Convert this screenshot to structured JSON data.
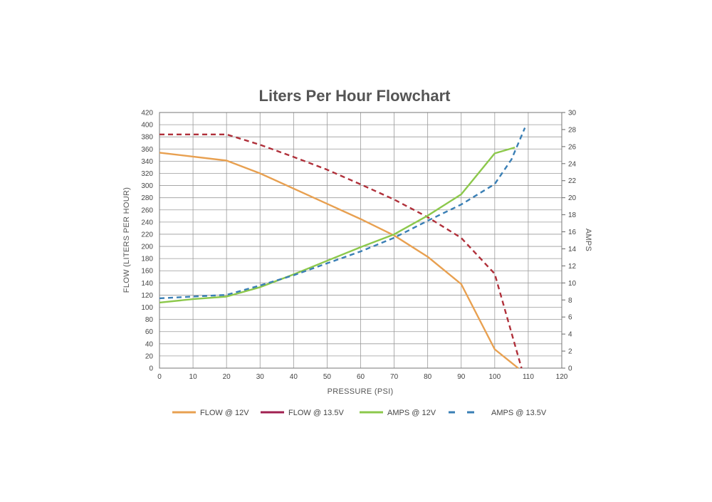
{
  "chart_data": {
    "type": "line",
    "title": "Liters Per Hour Flowchart",
    "xlabel": "PRESSURE (PSI)",
    "ylabel": "FLOW (LITERS PER HOUR)",
    "y2label": "AMPS",
    "xlim": [
      0,
      120
    ],
    "ylim": [
      0,
      420
    ],
    "y2lim": [
      0,
      30
    ],
    "x_ticks": [
      0,
      10,
      20,
      30,
      40,
      50,
      60,
      70,
      80,
      90,
      100,
      110,
      120
    ],
    "y_ticks": [
      0,
      20,
      40,
      60,
      80,
      100,
      120,
      140,
      160,
      180,
      200,
      220,
      240,
      260,
      280,
      300,
      320,
      340,
      360,
      380,
      400,
      420
    ],
    "y2_ticks": [
      0,
      2,
      4,
      6,
      8,
      10,
      12,
      14,
      16,
      18,
      20,
      22,
      24,
      26,
      28,
      30
    ],
    "grid": true,
    "legend_position": "bottom",
    "series": [
      {
        "name": "FLOW @ 12V",
        "axis": "left",
        "color": "#E8A050",
        "dash": "solid",
        "points": [
          [
            0,
            354
          ],
          [
            20,
            341
          ],
          [
            30,
            320
          ],
          [
            40,
            295
          ],
          [
            50,
            270
          ],
          [
            60,
            245
          ],
          [
            70,
            218
          ],
          [
            80,
            183
          ],
          [
            90,
            138
          ],
          [
            100,
            31
          ],
          [
            107,
            0
          ]
        ]
      },
      {
        "name": "FLOW @ 13.5V",
        "axis": "left",
        "color": "#B0303A",
        "legend_color": "#A02050",
        "dash": "dashed",
        "points": [
          [
            0,
            384
          ],
          [
            20,
            384
          ],
          [
            30,
            367
          ],
          [
            40,
            347
          ],
          [
            50,
            326
          ],
          [
            60,
            302
          ],
          [
            70,
            277
          ],
          [
            80,
            248
          ],
          [
            90,
            214
          ],
          [
            100,
            155
          ],
          [
            108,
            0
          ]
        ]
      },
      {
        "name": "AMPS @ 12V",
        "axis": "right",
        "color": "#8CC84B",
        "dash": "solid",
        "points": [
          [
            0,
            7.7
          ],
          [
            10,
            8.1
          ],
          [
            20,
            8.4
          ],
          [
            30,
            9.5
          ],
          [
            40,
            11
          ],
          [
            50,
            12.6
          ],
          [
            60,
            14.2
          ],
          [
            70,
            15.7
          ],
          [
            80,
            17.9
          ],
          [
            90,
            20.4
          ],
          [
            100,
            25.2
          ],
          [
            106,
            25.9
          ]
        ]
      },
      {
        "name": "AMPS @ 13.5V",
        "axis": "right",
        "color": "#3A7FB5",
        "dash": "dashed",
        "points": [
          [
            0,
            8.2
          ],
          [
            10,
            8.4
          ],
          [
            20,
            8.6
          ],
          [
            30,
            9.7
          ],
          [
            40,
            10.9
          ],
          [
            50,
            12.3
          ],
          [
            60,
            13.7
          ],
          [
            70,
            15.3
          ],
          [
            80,
            17.3
          ],
          [
            90,
            19.2
          ],
          [
            100,
            21.6
          ],
          [
            105,
            24.5
          ],
          [
            109,
            28.2
          ]
        ]
      }
    ]
  }
}
